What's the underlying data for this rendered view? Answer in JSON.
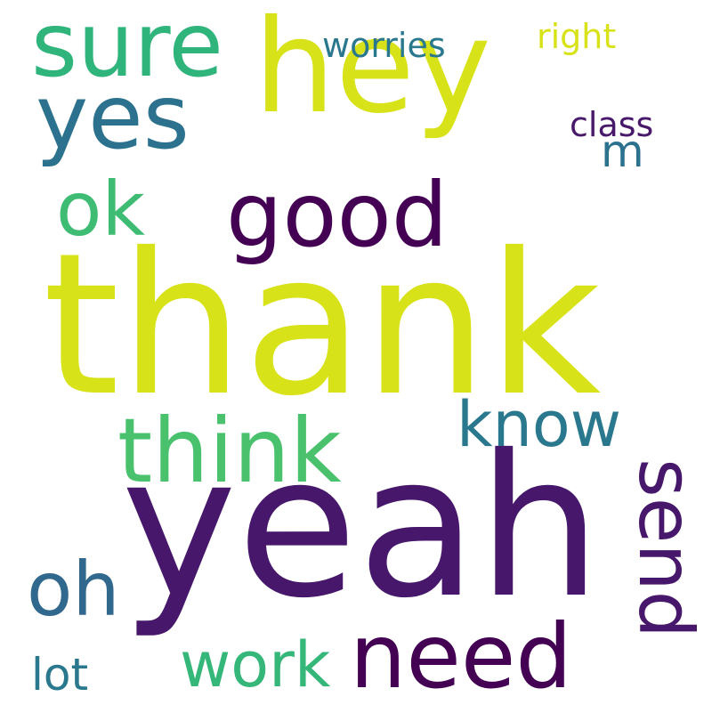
{
  "words": [
    {
      "id": "thank",
      "text": "thank",
      "color": "#d8e219",
      "weight": 1.0
    },
    {
      "id": "yeah",
      "text": "yeah",
      "color": "#46176a",
      "weight": 0.95
    },
    {
      "id": "hey",
      "text": "hey",
      "color": "#d8e219",
      "weight": 0.7
    },
    {
      "id": "sure",
      "text": "sure",
      "color": "#2fb47c",
      "weight": 0.45
    },
    {
      "id": "yes",
      "text": "yes",
      "color": "#2c728e",
      "weight": 0.45
    },
    {
      "id": "good",
      "text": "good",
      "color": "#440154",
      "weight": 0.45
    },
    {
      "id": "ok",
      "text": "ok",
      "color": "#3fbc73",
      "weight": 0.4
    },
    {
      "id": "think",
      "text": "think",
      "color": "#4ac16d",
      "weight": 0.45
    },
    {
      "id": "know",
      "text": "know",
      "color": "#2a788e",
      "weight": 0.35
    },
    {
      "id": "send",
      "text": "send",
      "color": "#46176a",
      "weight": 0.35
    },
    {
      "id": "oh",
      "text": "oh",
      "color": "#31688e",
      "weight": 0.4
    },
    {
      "id": "need",
      "text": "need",
      "color": "#440154",
      "weight": 0.5
    },
    {
      "id": "work",
      "text": "work",
      "color": "#35b779",
      "weight": 0.35
    },
    {
      "id": "lot",
      "text": "lot",
      "color": "#2a788e",
      "weight": 0.2
    },
    {
      "id": "worries",
      "text": "worries",
      "color": "#2a788e",
      "weight": 0.2
    },
    {
      "id": "right",
      "text": "right",
      "color": "#d8e219",
      "weight": 0.2
    },
    {
      "id": "class",
      "text": "class",
      "color": "#48186a",
      "weight": 0.2
    },
    {
      "id": "m",
      "text": "m",
      "color": "#2c728e",
      "weight": 0.2
    }
  ]
}
